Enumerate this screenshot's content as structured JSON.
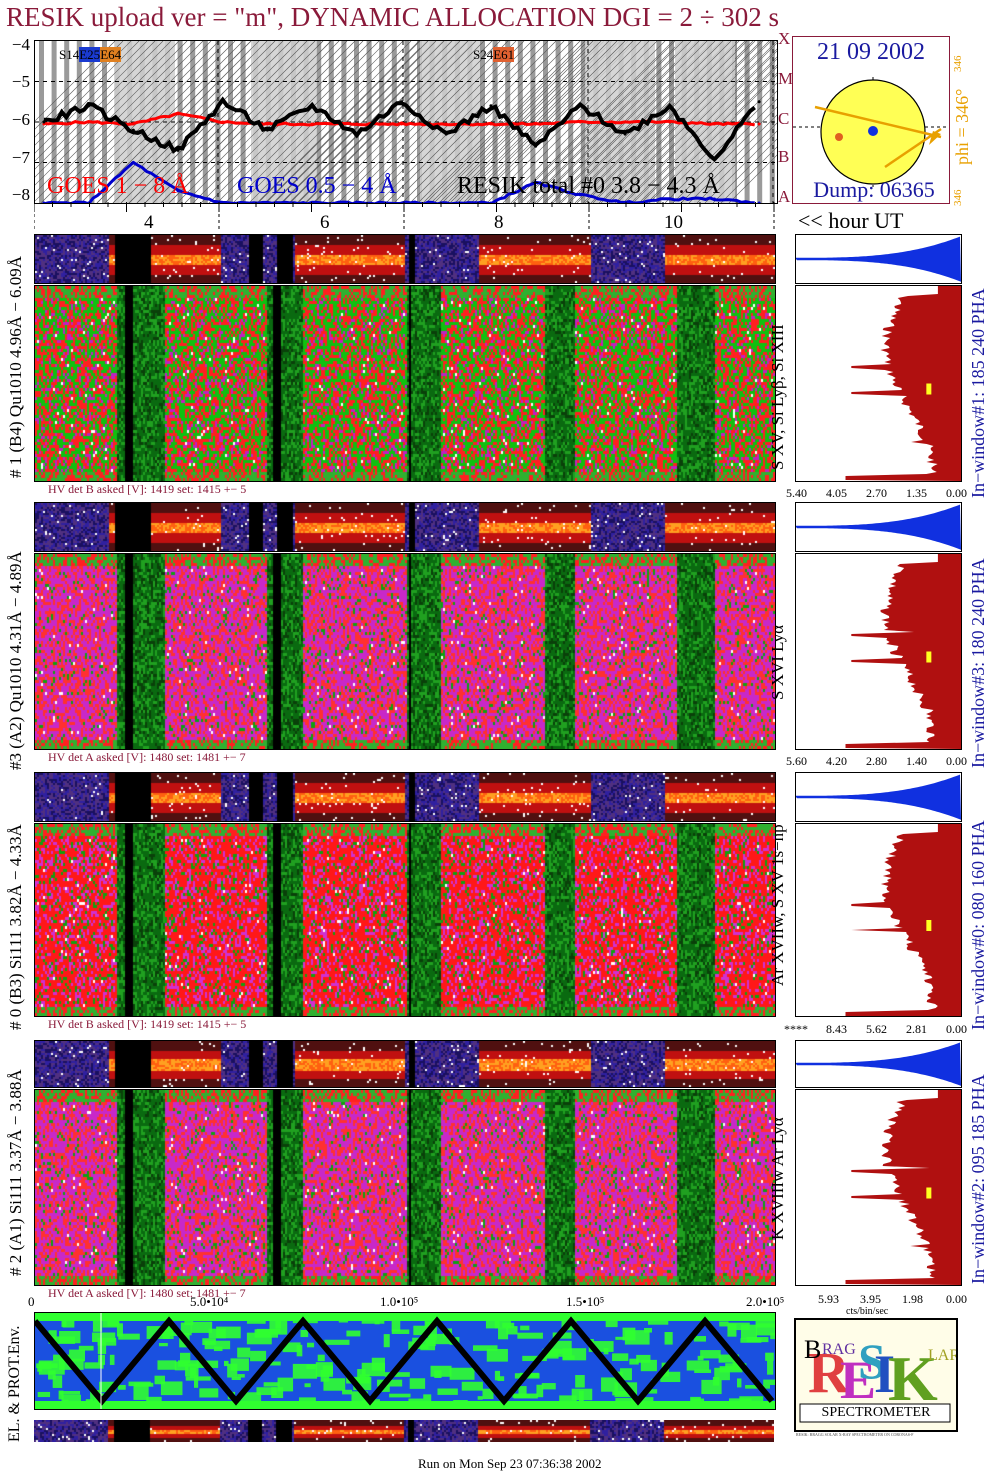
{
  "title": "RESIK upload ver = \"m\", DYNAMIC ALLOCATION  DGI =   2 ÷ 302 s",
  "goes_panel": {
    "y_ticks": [
      "−4",
      "−5",
      "−6",
      "−7",
      "−8"
    ],
    "flare_class_letters": [
      "X",
      "M",
      "C",
      "B",
      "A"
    ],
    "region_labels": [
      "S14",
      "E25",
      "E64",
      "S24",
      "E61"
    ],
    "legend": {
      "goes_long": "GOES 1 − 8 Å",
      "goes_short": "GOES 0.5 − 4 Å",
      "resik": "RESIK total #0   3.8 − 4.3 Å"
    },
    "colors": {
      "goes_long": "#ff0000",
      "goes_short": "#0000cc",
      "resik": "#000000",
      "shade_dark": "#888888",
      "shade_light": "#c8c8c8"
    }
  },
  "sun_panel": {
    "date": "21 09 2002",
    "phi_label": "phi = 346°",
    "phi_small_top": "346",
    "phi_small_bottom": "346",
    "dump": "Dump: 06365",
    "colors": {
      "disk": "#ffff55",
      "arrow": "#e8a000",
      "text": "#1a1aa0"
    }
  },
  "hour_axis": {
    "ticks": [
      "4",
      "6",
      "8",
      "10"
    ],
    "unit_label": "<< hour UT"
  },
  "channels": [
    {
      "left_label": "# 1 (B4) Qu1010 4.96Å − 6.09Å",
      "right_label": "In−window#1:  185 240 PHA",
      "line_label": "S XV, Si Lyβ, Si XIII",
      "hv_text": "HV det B asked [V]:  1419 set:  1415  +−    5",
      "pha_ticks": [
        "5.40",
        "4.05",
        "2.70",
        "1.35",
        "0.00"
      ],
      "main_color": "green"
    },
    {
      "left_label": "#3 (A2) Qu1010  4.31Å − 4.89Å",
      "right_label": "In−window#3:  180 240 PHA",
      "line_label": "S XVI Lyα",
      "hv_text": "HV det A asked [V]:  1480 set:  1481  +−    7",
      "pha_ticks": [
        "5.60",
        "4.20",
        "2.80",
        "1.40",
        "0.00"
      ],
      "main_color": "magenta"
    },
    {
      "left_label": "# 0 (B3) Si111  3.82Å − 4.33Å",
      "right_label": "In−window#0:  080 160 PHA",
      "line_label": "Ar XVIIw, S XV 1s−np",
      "hv_text": "HV det B asked [V]:  1419 set:  1415  +−    5",
      "pha_ticks": [
        "****",
        "8.43",
        "5.62",
        "2.81",
        "0.00"
      ],
      "main_color": "red"
    },
    {
      "left_label": "# 2 (A1) Si111  3.37Å − 3.88Å",
      "right_label": "In−window#2:  095 185 PHA",
      "line_label": "K XVIIIw  Ar Lyα",
      "hv_text": "HV det A asked [V]:  1480 set:  1481  +−    7",
      "pha_ticks": [
        "5.93",
        "3.95",
        "1.98",
        "0.00"
      ],
      "pha_unit": "cts/bin/sec",
      "main_color": "magenta"
    }
  ],
  "env_panel": {
    "label": "EL. & PROT.Env.",
    "x_ticks": [
      "0",
      "5.0•10⁴",
      "1.0•10⁵",
      "1.5•10⁵",
      "2.0•10⁵"
    ]
  },
  "logo": {
    "letters": "RESIK",
    "small": [
      "B",
      "R",
      "A",
      "G",
      "S",
      "O",
      "L",
      "A",
      "R"
    ],
    "caption": "SPECTROMETER",
    "fine_print": "RESIK: BRAGG SOLAR X-RAY SPECTROMETER ON CORONAS-F"
  },
  "footer": "Run on Mon Sep 23 07:36:38 2002",
  "chart_data": {
    "type": "line",
    "title": "RESIK upload ver = \"m\", DYNAMIC ALLOCATION  DGI =   2 ÷ 302 s",
    "xlabel": "<< hour UT",
    "ylabel": "",
    "xlim": [
      2.9,
      11.2
    ],
    "ylim": [
      -8,
      -4
    ],
    "x": [
      3.0,
      3.5,
      4.0,
      4.5,
      5.0,
      5.5,
      6.0,
      6.5,
      7.0,
      7.5,
      8.0,
      8.5,
      9.0,
      9.5,
      10.0,
      10.5,
      11.0
    ],
    "series": [
      {
        "name": "GOES 1 − 8 Å",
        "values": [
          -6.05,
          -6.0,
          -6.05,
          -5.8,
          -6.0,
          -6.05,
          -6.05,
          -6.05,
          -6.05,
          -6.05,
          -6.05,
          -6.05,
          -6.0,
          -6.0,
          -6.0,
          -6.05,
          -6.05
        ]
      },
      {
        "name": "GOES 0.5 − 4 Å",
        "values": [
          -8.0,
          -8.0,
          -7.0,
          -7.7,
          -8.0,
          -8.0,
          -8.0,
          -8.0,
          -8.0,
          -8.0,
          -8.0,
          -7.5,
          -7.8,
          -8.0,
          -7.9,
          -7.9,
          -8.0
        ]
      },
      {
        "name": "RESIK total #0   3.8 − 4.3 Å",
        "values": [
          -6.0,
          -5.6,
          -6.2,
          -6.7,
          -5.5,
          -6.2,
          -5.6,
          -6.3,
          -5.5,
          -6.3,
          -5.6,
          -6.6,
          -5.6,
          -6.3,
          -5.6,
          -6.9,
          -5.5
        ]
      }
    ],
    "env_x_ticks": [
      "0",
      "5.0•10⁴",
      "1.0•10⁵",
      "1.5•10⁵",
      "2.0•10⁵"
    ],
    "grid": true
  }
}
